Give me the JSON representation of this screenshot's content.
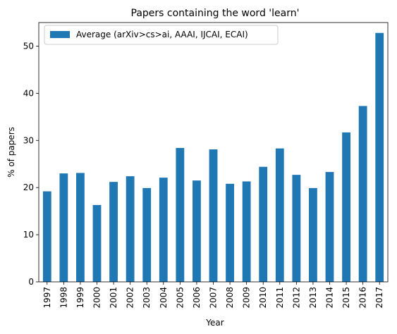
{
  "chart_data": {
    "type": "bar",
    "title": "Papers containing the word 'learn'",
    "xlabel": "Year",
    "ylabel": "% of papers",
    "categories": [
      "1997",
      "1998",
      "1999",
      "2000",
      "2001",
      "2002",
      "2003",
      "2004",
      "2005",
      "2006",
      "2007",
      "2008",
      "2009",
      "2010",
      "2011",
      "2012",
      "2013",
      "2014",
      "2015",
      "2016",
      "2017"
    ],
    "series": [
      {
        "name": "Average (arXiv>cs>ai, AAAI, IJCAI, ECAI)",
        "color": "#1f77b4",
        "values": [
          19.2,
          23.0,
          23.1,
          16.3,
          21.2,
          22.4,
          19.9,
          22.1,
          28.4,
          21.5,
          28.1,
          20.8,
          21.3,
          24.4,
          28.3,
          22.7,
          19.9,
          23.3,
          31.7,
          37.3,
          52.8
        ]
      }
    ],
    "ylim": [
      0,
      55
    ],
    "yticks": [
      0,
      10,
      20,
      30,
      40,
      50
    ],
    "grid": false,
    "legend_position": "upper-left"
  }
}
